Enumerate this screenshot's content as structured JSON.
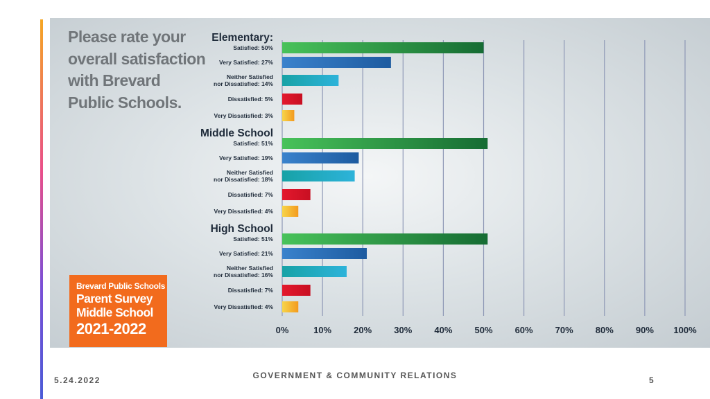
{
  "question": "Please rate your overall satisfaction with Brevard Public Schools.",
  "badge": {
    "line1": "Brevard Public Schools",
    "line2": "Parent Survey",
    "line3": "Middle School",
    "line4": "2021-2022"
  },
  "footer": {
    "date": "5.24.2022",
    "center": "GOVERNMENT & COMMUNITY RELATIONS",
    "page": "5"
  },
  "chart_data": {
    "type": "bar",
    "orientation": "horizontal",
    "xlim": [
      0,
      100
    ],
    "x_ticks": [
      "0%",
      "10%",
      "20%",
      "30%",
      "40%",
      "50%",
      "60%",
      "70%",
      "80%",
      "90%",
      "100%"
    ],
    "grid": true,
    "groups": [
      {
        "title": "Elementary:",
        "bars": [
          {
            "label": "Satisfied: 50%",
            "value": 50,
            "color": "green"
          },
          {
            "label": "Very Satisfied: 27%",
            "value": 27,
            "color": "blue"
          },
          {
            "label": "Neither Satisfied\nnor Dissatisfied: 14%",
            "value": 14,
            "color": "teal"
          },
          {
            "label": "Dissatisfied: 5%",
            "value": 5,
            "color": "red"
          },
          {
            "label": "Very Dissatisfied: 3%",
            "value": 3,
            "color": "yellow"
          }
        ]
      },
      {
        "title": "Middle School",
        "bars": [
          {
            "label": "Satisfied: 51%",
            "value": 51,
            "color": "green"
          },
          {
            "label": "Very Satisfied: 19%",
            "value": 19,
            "color": "blue"
          },
          {
            "label": "Neither Satisfied\nnor Dissatisfied: 18%",
            "value": 18,
            "color": "teal"
          },
          {
            "label": "Dissatisfied: 7%",
            "value": 7,
            "color": "red"
          },
          {
            "label": "Very Dissatisfied: 4%",
            "value": 4,
            "color": "yellow"
          }
        ]
      },
      {
        "title": "High School",
        "bars": [
          {
            "label": "Satisfied: 51%",
            "value": 51,
            "color": "green"
          },
          {
            "label": "Very Satisfied: 21%",
            "value": 21,
            "color": "blue"
          },
          {
            "label": "Neither Satisfied\nnor Dissatisfied: 16%",
            "value": 16,
            "color": "teal"
          },
          {
            "label": "Dissatisfied: 7%",
            "value": 7,
            "color": "red"
          },
          {
            "label": "Very Dissatisfied: 4%",
            "value": 4,
            "color": "yellow"
          }
        ]
      }
    ],
    "colors": {
      "green": "#2fa84f",
      "blue": "#2a6fb8",
      "teal": "#1aa7b8",
      "red": "#e3182d",
      "yellow": "#f7c62f",
      "grid": "#8d97b5"
    }
  }
}
